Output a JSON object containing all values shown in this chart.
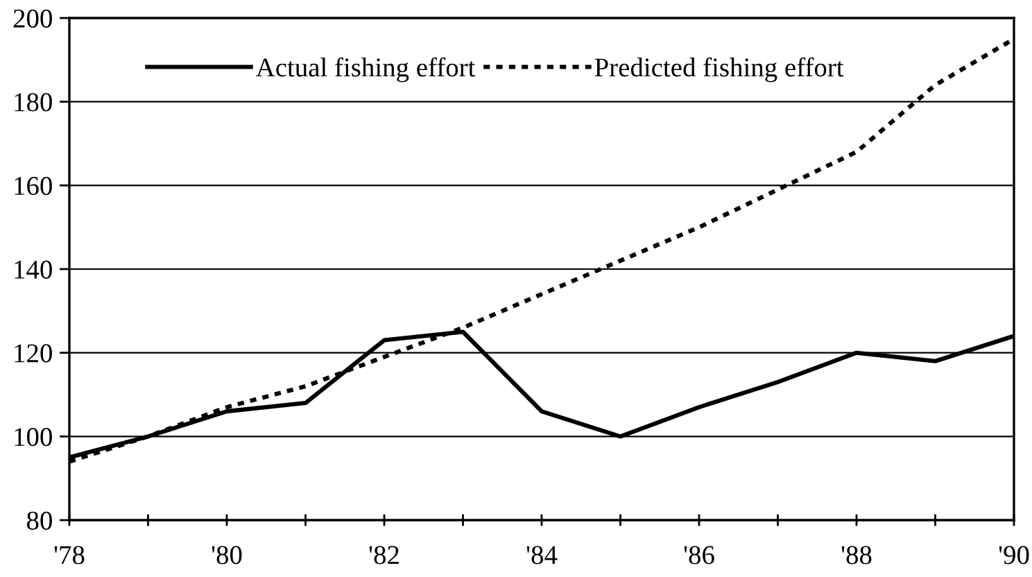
{
  "chart_data": {
    "type": "line",
    "x": [
      1978,
      1979,
      1980,
      1981,
      1982,
      1983,
      1984,
      1985,
      1986,
      1987,
      1988,
      1989,
      1990
    ],
    "series": [
      {
        "name": "Actual fishing effort",
        "color": "#000000",
        "line_style": "solid",
        "values": [
          95,
          100,
          106,
          108,
          123,
          125,
          106,
          100,
          107,
          113,
          120,
          118,
          124
        ]
      },
      {
        "name": "Predicted fishing effort",
        "color": "#000000",
        "line_style": "dotted",
        "values": [
          94,
          100,
          107,
          112,
          119,
          126,
          134,
          142,
          150,
          159,
          168,
          184,
          195
        ]
      }
    ],
    "xlim": [
      1978,
      1990
    ],
    "xticks": [
      {
        "value": 1978,
        "label": "'78"
      },
      {
        "value": 1979,
        "label": null
      },
      {
        "value": 1980,
        "label": "'80"
      },
      {
        "value": 1981,
        "label": null
      },
      {
        "value": 1982,
        "label": "'82"
      },
      {
        "value": 1983,
        "label": null
      },
      {
        "value": 1984,
        "label": "'84"
      },
      {
        "value": 1985,
        "label": null
      },
      {
        "value": 1986,
        "label": "'86"
      },
      {
        "value": 1987,
        "label": null
      },
      {
        "value": 1988,
        "label": "'88"
      },
      {
        "value": 1989,
        "label": null
      },
      {
        "value": 1990,
        "label": "'90"
      }
    ],
    "ylim": [
      80,
      200
    ],
    "yticks": [
      80,
      100,
      120,
      140,
      160,
      180,
      200
    ],
    "grid": "y",
    "legend": "top",
    "marker": "none"
  }
}
